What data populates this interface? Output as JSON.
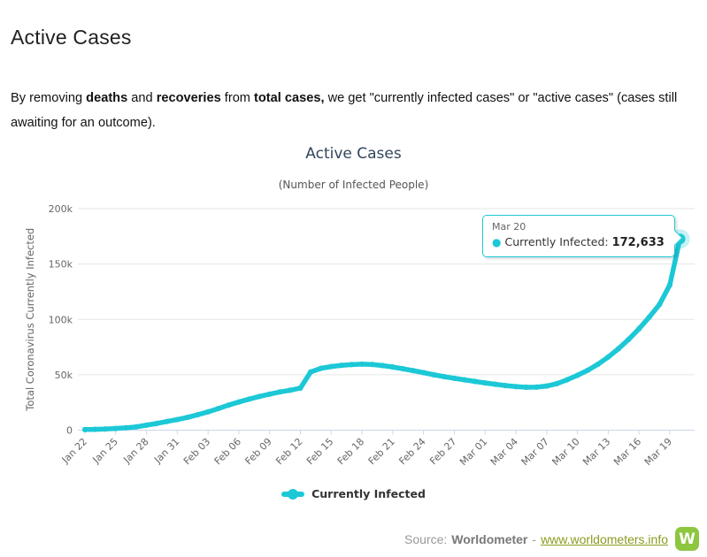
{
  "page": {
    "title": "Active Cases",
    "intro": {
      "part1": "By removing ",
      "bold1": "deaths",
      "part2": " and ",
      "bold2": "recoveries",
      "part3": " from ",
      "bold3": "total cases,",
      "part4": " we get \"currently infected cases\" or \"active cases\" (cases still awaiting for an outcome)."
    }
  },
  "chart_data": {
    "type": "line",
    "title": "Active Cases",
    "subtitle": "(Number of Infected People)",
    "ylabel": "Total Coronavirus Currently Infected",
    "ylim": [
      0,
      200000
    ],
    "yticks": [
      {
        "value": 0,
        "label": "0"
      },
      {
        "value": 50000,
        "label": "50k"
      },
      {
        "value": 100000,
        "label": "100k"
      },
      {
        "value": 150000,
        "label": "150k"
      },
      {
        "value": 200000,
        "label": "200k"
      }
    ],
    "x_tick_every": 3,
    "grid": true,
    "legend_position": "bottom",
    "series_name": "Currently Infected",
    "categories": [
      "Jan 22",
      "Jan 23",
      "Jan 24",
      "Jan 25",
      "Jan 26",
      "Jan 27",
      "Jan 28",
      "Jan 29",
      "Jan 30",
      "Jan 31",
      "Feb 01",
      "Feb 02",
      "Feb 03",
      "Feb 04",
      "Feb 05",
      "Feb 06",
      "Feb 07",
      "Feb 08",
      "Feb 09",
      "Feb 10",
      "Feb 11",
      "Feb 12",
      "Feb 13",
      "Feb 14",
      "Feb 15",
      "Feb 16",
      "Feb 17",
      "Feb 18",
      "Feb 19",
      "Feb 20",
      "Feb 21",
      "Feb 22",
      "Feb 23",
      "Feb 24",
      "Feb 25",
      "Feb 26",
      "Feb 27",
      "Feb 28",
      "Feb 29",
      "Mar 01",
      "Mar 02",
      "Mar 03",
      "Mar 04",
      "Mar 05",
      "Mar 06",
      "Mar 07",
      "Mar 08",
      "Mar 09",
      "Mar 10",
      "Mar 11",
      "Mar 12",
      "Mar 13",
      "Mar 14",
      "Mar 15",
      "Mar 16",
      "Mar 17",
      "Mar 18",
      "Mar 19",
      "Mar 20"
    ],
    "values": [
      500,
      700,
      1000,
      1500,
      2100,
      2900,
      4500,
      6000,
      7800,
      9500,
      11500,
      13900,
      16500,
      19500,
      22600,
      25400,
      28000,
      30400,
      32500,
      34500,
      36000,
      38000,
      52500,
      55800,
      57400,
      58500,
      59200,
      59600,
      59300,
      58300,
      57000,
      55400,
      53700,
      51900,
      50000,
      48300,
      46800,
      45400,
      44000,
      42600,
      41400,
      40200,
      39300,
      38700,
      38800,
      39800,
      42000,
      45500,
      49500,
      54000,
      59500,
      66000,
      73500,
      82000,
      91500,
      102000,
      113500,
      131000,
      172633
    ],
    "highlight": {
      "category": "Mar 20",
      "value": 172633,
      "label": "172,633"
    }
  },
  "tooltip": {
    "header": "Mar 20",
    "series": "Currently Infected:",
    "value": "172,633"
  },
  "legend": {
    "label": "Currently Infected"
  },
  "footer": {
    "source_label": "Source:",
    "source_name": "Worldometer",
    "separator": "-",
    "link_text": "www.worldometers.info",
    "logo_letter": "W"
  },
  "colors": {
    "accent": "#1cc8d6",
    "grid": "#e6e6e6",
    "axis_line": "#ccd6eb",
    "tick_label": "#666666",
    "chart_title": "#32455c",
    "chart_subtitle": "#555555",
    "link": "#8b9b1f",
    "logo_green": "#8dc63f"
  }
}
